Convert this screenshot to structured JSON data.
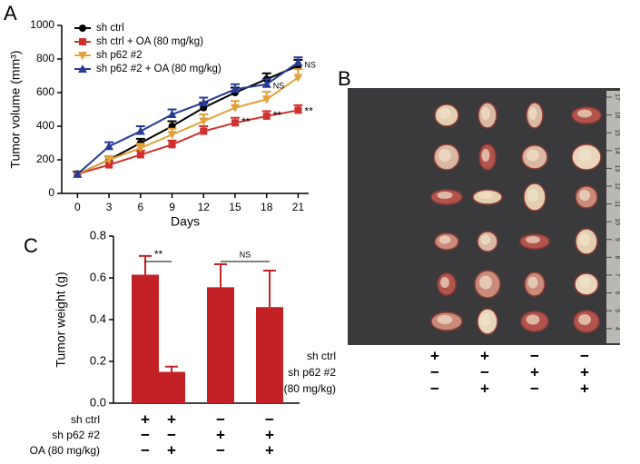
{
  "panel_labels": [
    "A",
    "B",
    "C"
  ],
  "chart_data": [
    {
      "type": "line",
      "ylabel": "Tumor volume (mm³)",
      "xlabel": "Days",
      "x": [
        0,
        3,
        6,
        9,
        12,
        15,
        18,
        21
      ],
      "xlim": [
        -1.5,
        22
      ],
      "xticks": [
        0,
        3,
        6,
        9,
        12,
        15,
        18,
        21
      ],
      "ylim": [
        0,
        1000
      ],
      "yticks": [
        0,
        200,
        400,
        600,
        800,
        1000
      ],
      "legend": "upper left",
      "series": [
        {
          "name": "sh ctrl",
          "color": "#000000",
          "marker": "circle",
          "values": [
            115,
            200,
            300,
            400,
            510,
            600,
            680,
            760
          ],
          "errors": [
            15,
            20,
            25,
            30,
            30,
            30,
            35,
            35
          ]
        },
        {
          "name": "sh ctrl + OA (80 mg/kg)",
          "color": "#d1302f",
          "marker": "square",
          "values": [
            115,
            170,
            230,
            290,
            370,
            420,
            460,
            495
          ],
          "errors": [
            15,
            20,
            25,
            25,
            30,
            30,
            30,
            30
          ]
        },
        {
          "name": "sh p62 #2",
          "color": "#e3a13a",
          "marker": "triangle-down",
          "values": [
            115,
            200,
            270,
            350,
            430,
            510,
            560,
            690
          ],
          "errors": [
            15,
            20,
            25,
            35,
            40,
            40,
            45,
            50
          ]
        },
        {
          "name": "sh p62 #2 + OA (80 mg/kg)",
          "color": "#283b96",
          "marker": "triangle-up",
          "values": [
            115,
            280,
            370,
            470,
            540,
            620,
            650,
            780
          ],
          "errors": [
            15,
            25,
            30,
            30,
            30,
            30,
            30,
            30
          ]
        }
      ],
      "annotations": [
        {
          "text": "**",
          "x": 15,
          "y": 422
        },
        {
          "text": "**",
          "x": 18,
          "y": 460
        },
        {
          "text": "**",
          "x": 21,
          "y": 486
        },
        {
          "text": "NS",
          "x": 18,
          "y": 638
        },
        {
          "text": "NS",
          "x": 21,
          "y": 762
        }
      ]
    },
    {
      "type": "bar",
      "ylabel": "Tumor weight (g)",
      "values": [
        0.615,
        0.15,
        0.555,
        0.46
      ],
      "errors": [
        0.09,
        0.025,
        0.11,
        0.175
      ],
      "color": "#c42126",
      "ylim": [
        0,
        0.8
      ],
      "yticks": [
        {
          "value": 0,
          "label": "0.0"
        },
        0.2,
        0.4,
        0.6,
        0.8
      ],
      "comparisons": [
        {
          "pair": [
            0,
            1
          ],
          "text": "**"
        },
        {
          "pair": [
            2,
            3
          ],
          "text": "NS"
        }
      ],
      "conditions": [
        {
          "label": "sh ctrl",
          "signs": [
            "+",
            "+",
            "−",
            "−"
          ]
        },
        {
          "label": "sh p62 #2",
          "signs": [
            "−",
            "−",
            "+",
            "+"
          ]
        },
        {
          "label": "OA (80 mg/kg)",
          "signs": [
            "−",
            "+",
            "−",
            "+"
          ]
        }
      ]
    }
  ],
  "photo": {
    "ruler_labels": [
      "17",
      "16",
      "15",
      "14",
      "13",
      "12",
      "11",
      "10",
      "9",
      "8",
      "7",
      "6",
      "5",
      "4"
    ],
    "conditions": [
      {
        "label": "sh ctrl",
        "signs": [
          "+",
          "+",
          "−",
          "−"
        ]
      },
      {
        "label": "sh p62 #2",
        "signs": [
          "−",
          "−",
          "+",
          "+"
        ]
      },
      {
        "label": "OA (80 mg/kg)",
        "signs": [
          "−",
          "+",
          "−",
          "+"
        ]
      }
    ]
  }
}
